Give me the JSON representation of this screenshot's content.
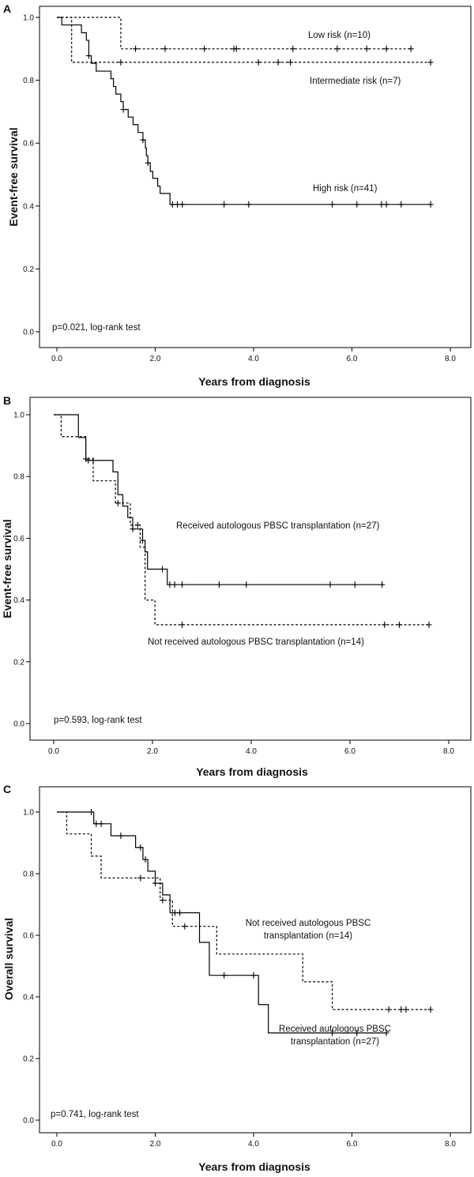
{
  "chart_data": [
    {
      "type": "line",
      "panel": "A",
      "xlabel": "Years from diagnosis",
      "ylabel": "Event-free survival",
      "xlim": [
        0,
        8
      ],
      "ylim": [
        0,
        1
      ],
      "x_ticks": [
        "0.0",
        "2.0",
        "4.0",
        "6.0",
        "8.0"
      ],
      "y_ticks": [
        "0.0",
        "0.2",
        "0.4",
        "0.6",
        "0.8",
        "1.0"
      ],
      "annotation": "p=0.021, log-rank test",
      "series": [
        {
          "name": "Low risk (n=10)",
          "line_style": "dashed",
          "steps": [
            [
              0,
              1.0
            ],
            [
              1.3,
              0.9
            ],
            [
              7.2,
              0.9
            ]
          ],
          "censored": [
            [
              1.6,
              0.9
            ],
            [
              2.2,
              0.9
            ],
            [
              3.0,
              0.9
            ],
            [
              3.6,
              0.9
            ],
            [
              3.65,
              0.9
            ],
            [
              4.8,
              0.9
            ],
            [
              5.7,
              0.9
            ],
            [
              6.3,
              0.9
            ],
            [
              6.7,
              0.9
            ],
            [
              7.2,
              0.9
            ]
          ]
        },
        {
          "name": "Intermediate risk (n=7)",
          "line_style": "dashed",
          "steps": [
            [
              0,
              1.0
            ],
            [
              0.3,
              0.857
            ],
            [
              7.6,
              0.857
            ]
          ],
          "censored": [
            [
              1.3,
              0.857
            ],
            [
              4.1,
              0.857
            ],
            [
              4.5,
              0.857
            ],
            [
              4.75,
              0.857
            ],
            [
              7.6,
              0.857
            ]
          ]
        },
        {
          "name": "High risk (n=41)",
          "line_style": "solid",
          "steps": [
            [
              0,
              1.0
            ],
            [
              0.1,
              0.976
            ],
            [
              0.5,
              0.951
            ],
            [
              0.6,
              0.927
            ],
            [
              0.65,
              0.878
            ],
            [
              0.7,
              0.854
            ],
            [
              0.8,
              0.829
            ],
            [
              1.1,
              0.805
            ],
            [
              1.15,
              0.78
            ],
            [
              1.2,
              0.756
            ],
            [
              1.3,
              0.732
            ],
            [
              1.35,
              0.707
            ],
            [
              1.45,
              0.683
            ],
            [
              1.55,
              0.659
            ],
            [
              1.65,
              0.634
            ],
            [
              1.75,
              0.61
            ],
            [
              1.8,
              0.585
            ],
            [
              1.82,
              0.56
            ],
            [
              1.85,
              0.537
            ],
            [
              1.9,
              0.51
            ],
            [
              1.95,
              0.488
            ],
            [
              2.05,
              0.463
            ],
            [
              2.1,
              0.44
            ],
            [
              2.3,
              0.405
            ],
            [
              7.6,
              0.405
            ]
          ],
          "censored": [
            [
              0.65,
              0.878
            ],
            [
              1.35,
              0.707
            ],
            [
              1.75,
              0.61
            ],
            [
              1.85,
              0.537
            ],
            [
              2.35,
              0.405
            ],
            [
              2.45,
              0.405
            ],
            [
              2.55,
              0.405
            ],
            [
              3.4,
              0.405
            ],
            [
              3.9,
              0.405
            ],
            [
              5.6,
              0.405
            ],
            [
              6.1,
              0.405
            ],
            [
              6.6,
              0.405
            ],
            [
              6.7,
              0.405
            ],
            [
              7.0,
              0.405
            ],
            [
              7.6,
              0.405
            ]
          ]
        }
      ]
    },
    {
      "type": "line",
      "panel": "B",
      "xlabel": "Years from diagnosis",
      "ylabel": "Event-free survival",
      "xlim": [
        0,
        8
      ],
      "ylim": [
        0,
        1
      ],
      "x_ticks": [
        "0.0",
        "2.0",
        "4.0",
        "6.0",
        "8.0"
      ],
      "y_ticks": [
        "0.0",
        "0.2",
        "0.4",
        "0.6",
        "0.8",
        "1.0"
      ],
      "annotation": "p=0.593, log-rank test",
      "series": [
        {
          "name": "Received autologous PBSC transplantation (n=27)",
          "line_style": "solid",
          "steps": [
            [
              0,
              1.0
            ],
            [
              0.5,
              0.926
            ],
            [
              0.65,
              0.852
            ],
            [
              1.2,
              0.815
            ],
            [
              1.3,
              0.741
            ],
            [
              1.4,
              0.704
            ],
            [
              1.5,
              0.667
            ],
            [
              1.6,
              0.63
            ],
            [
              1.8,
              0.593
            ],
            [
              1.85,
              0.556
            ],
            [
              1.9,
              0.5
            ],
            [
              2.3,
              0.45
            ],
            [
              6.65,
              0.45
            ]
          ],
          "censored": [
            [
              0.7,
              0.852
            ],
            [
              0.8,
              0.852
            ],
            [
              1.6,
              0.63
            ],
            [
              1.8,
              0.593
            ],
            [
              2.2,
              0.5
            ],
            [
              2.35,
              0.45
            ],
            [
              2.45,
              0.45
            ],
            [
              2.6,
              0.45
            ],
            [
              3.35,
              0.45
            ],
            [
              3.9,
              0.45
            ],
            [
              5.6,
              0.45
            ],
            [
              6.1,
              0.45
            ],
            [
              6.65,
              0.45
            ]
          ]
        },
        {
          "name": "Not received autologous PBSC transplantation (n=14)",
          "line_style": "dashed",
          "steps": [
            [
              0,
              1.0
            ],
            [
              0.15,
              0.929
            ],
            [
              0.65,
              0.857
            ],
            [
              0.8,
              0.786
            ],
            [
              1.25,
              0.714
            ],
            [
              1.55,
              0.643
            ],
            [
              1.75,
              0.571
            ],
            [
              1.85,
              0.4
            ],
            [
              2.05,
              0.32
            ],
            [
              7.6,
              0.32
            ]
          ],
          "censored": [
            [
              0.65,
              0.857
            ],
            [
              1.3,
              0.714
            ],
            [
              1.7,
              0.643
            ],
            [
              2.6,
              0.32
            ],
            [
              6.7,
              0.32
            ],
            [
              7.0,
              0.32
            ],
            [
              7.6,
              0.32
            ]
          ]
        }
      ]
    },
    {
      "type": "line",
      "panel": "C",
      "xlabel": "Years from diagnosis",
      "ylabel": "Overall survival",
      "xlim": [
        0,
        8
      ],
      "ylim": [
        0,
        1
      ],
      "x_ticks": [
        "0.0",
        "2.0",
        "4.0",
        "6.0",
        "8.0"
      ],
      "y_ticks": [
        "0.0",
        "0.2",
        "0.4",
        "0.6",
        "0.8",
        "1.0"
      ],
      "annotation": "p=0.741, log-rank test",
      "series": [
        {
          "name": "Received autologous PBSC transplantation (n=27)",
          "line_style": "solid",
          "steps": [
            [
              0,
              1.0
            ],
            [
              0.75,
              0.962
            ],
            [
              1.1,
              0.923
            ],
            [
              1.6,
              0.885
            ],
            [
              1.75,
              0.846
            ],
            [
              1.85,
              0.808
            ],
            [
              2.0,
              0.769
            ],
            [
              2.15,
              0.731
            ],
            [
              2.3,
              0.673
            ],
            [
              2.9,
              0.577
            ],
            [
              3.1,
              0.47
            ],
            [
              4.1,
              0.375
            ],
            [
              4.3,
              0.283
            ],
            [
              6.7,
              0.283
            ]
          ],
          "censored": [
            [
              0.7,
              1.0
            ],
            [
              0.8,
              0.962
            ],
            [
              0.9,
              0.962
            ],
            [
              1.3,
              0.923
            ],
            [
              1.7,
              0.885
            ],
            [
              1.8,
              0.846
            ],
            [
              2.0,
              0.769
            ],
            [
              2.4,
              0.673
            ],
            [
              2.5,
              0.673
            ],
            [
              3.4,
              0.47
            ],
            [
              4.0,
              0.47
            ],
            [
              5.6,
              0.283
            ],
            [
              6.1,
              0.283
            ],
            [
              6.7,
              0.283
            ]
          ]
        },
        {
          "name": "Not received autologous PBSC transplantation (n=14)",
          "line_style": "dashed",
          "steps": [
            [
              0,
              1.0
            ],
            [
              0.2,
              0.929
            ],
            [
              0.7,
              0.857
            ],
            [
              0.9,
              0.786
            ],
            [
              2.1,
              0.714
            ],
            [
              2.35,
              0.629
            ],
            [
              3.25,
              0.539
            ],
            [
              5.0,
              0.449
            ],
            [
              5.6,
              0.359
            ],
            [
              7.6,
              0.359
            ]
          ],
          "censored": [
            [
              1.7,
              0.786
            ],
            [
              2.15,
              0.714
            ],
            [
              2.6,
              0.629
            ],
            [
              6.75,
              0.359
            ],
            [
              7.0,
              0.359
            ],
            [
              7.1,
              0.359
            ],
            [
              7.6,
              0.359
            ]
          ]
        }
      ]
    }
  ],
  "labels": {
    "a_low_risk": "Low risk (n=10)",
    "a_intermediate_risk": "Intermediate risk (n=7)",
    "a_high_risk": "High risk (n=41)",
    "b_received": "Received autologous PBSC transplantation (n=27)",
    "b_not_received": "Not received autologous PBSC transplantation (n=14)",
    "c_not_received_line1": "Not received autologous PBSC",
    "c_not_received_line2": "transplantation (n=14)",
    "c_received_line1": "Received autologous PBSC",
    "c_received_line2": "transplantation (n=27)"
  }
}
